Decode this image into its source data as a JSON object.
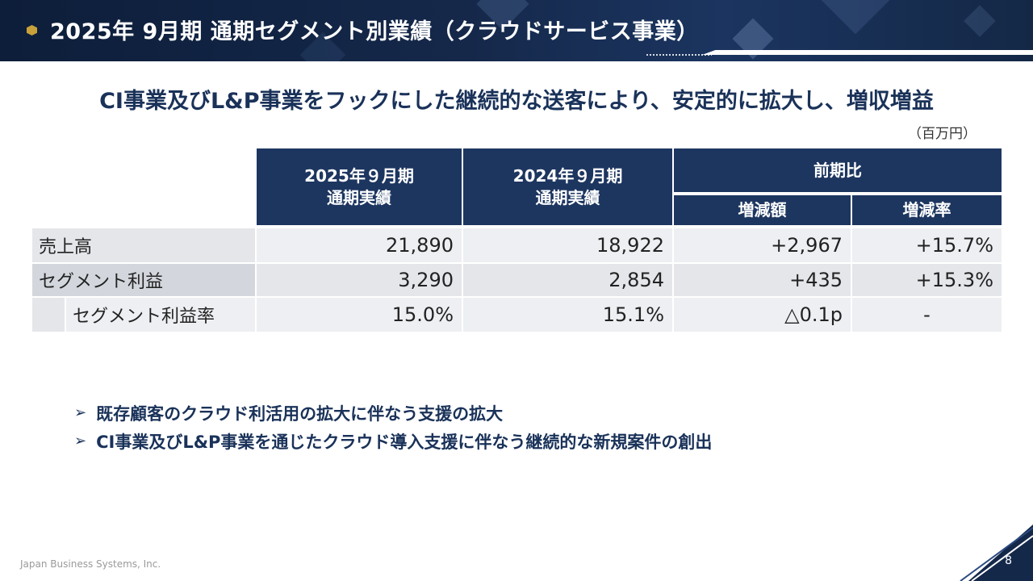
{
  "header": {
    "title": "2025年 9月期 通期セグメント別業績（クラウドサービス事業）"
  },
  "headline": "CI事業及びL&P事業をフックにした継続的な送客により、安定的に拡大し、増収増益",
  "unit": "（百万円）",
  "table": {
    "col_fy2025_line1": "2025年９月期",
    "col_fy2025_line2": "通期実績",
    "col_fy2024_line1": "2024年９月期",
    "col_fy2024_line2": "通期実績",
    "col_yoy": "前期比",
    "col_change_amount": "増減額",
    "col_change_rate": "増減率",
    "rows": [
      {
        "label": "売上高",
        "fy2025": "21,890",
        "fy2024": "18,922",
        "change": "+2,967",
        "rate": "+15.7%"
      },
      {
        "label": "セグメント利益",
        "fy2025": "3,290",
        "fy2024": "2,854",
        "change": "+435",
        "rate": "+15.3%"
      },
      {
        "label": "セグメント利益率",
        "fy2025": "15.0%",
        "fy2024": "15.1%",
        "change": "△0.1p",
        "rate": "-"
      }
    ]
  },
  "points": [
    "既存顧客のクラウド利活用の拡大に伴なう支援の拡大",
    "CI事業及びL&P事業を通じたクラウド導入支援に伴なう継続的な新規案件の創出"
  ],
  "footer": {
    "company": "Japan Business Systems, Inc.",
    "page_number": "8"
  },
  "colors": {
    "navy": "#1d3660",
    "header_bg": "#0d1e3a",
    "accent_gold": "#c9a13a"
  }
}
